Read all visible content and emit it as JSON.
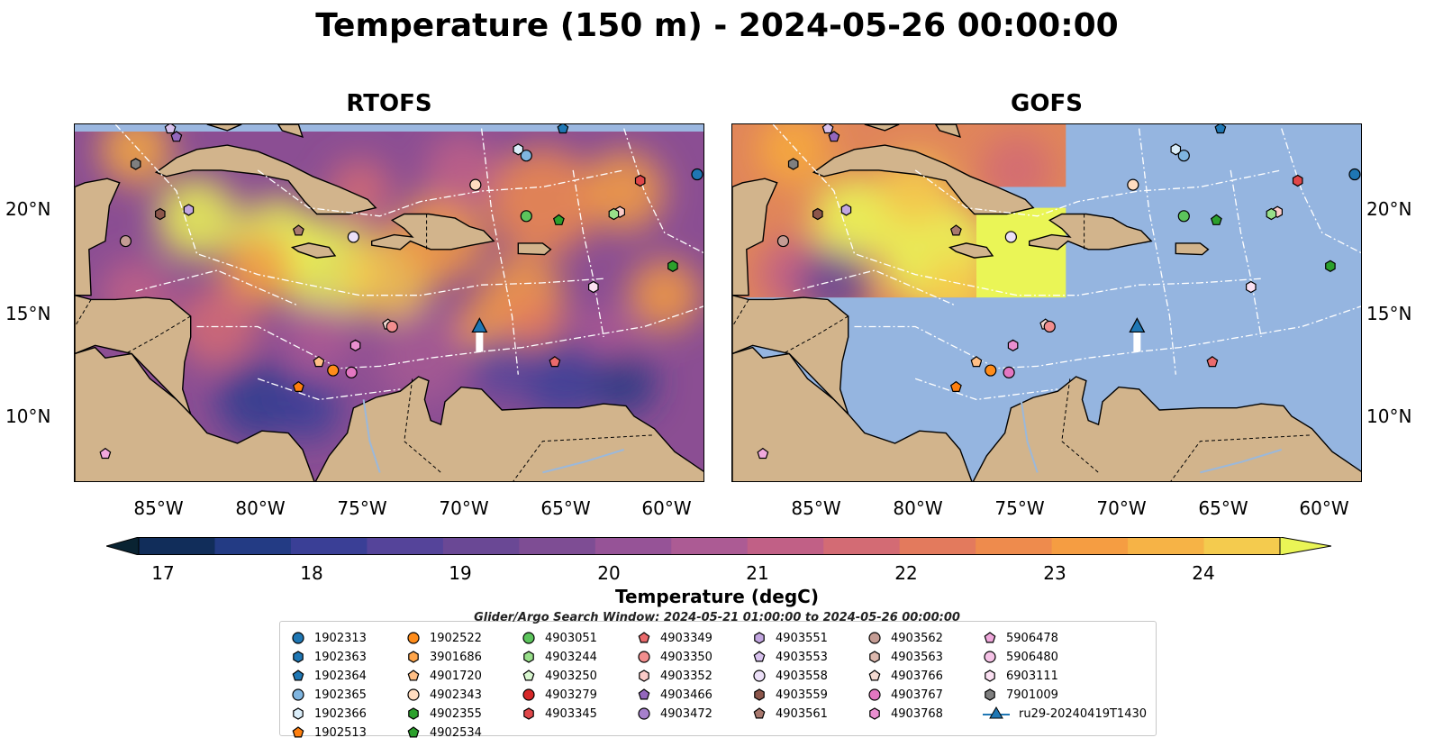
{
  "title": "Temperature (150 m) - 2024-05-26 00:00:00",
  "panels": [
    {
      "title": "RTOFS"
    },
    {
      "title": "GOFS"
    }
  ],
  "map_extent": {
    "lon": [
      -89,
      -58
    ],
    "lat": [
      7,
      24.2
    ]
  },
  "axes": {
    "lat_ticks": [
      "20°N",
      "15°N",
      "10°N"
    ],
    "lon_ticks": [
      "85°W",
      "80°W",
      "75°W",
      "70°W",
      "65°W",
      "60°W"
    ]
  },
  "colorbar": {
    "label": "Temperature (degC)",
    "ticks": [
      "17",
      "18",
      "19",
      "20",
      "21",
      "22",
      "23",
      "24"
    ],
    "range": [
      16.5,
      24.5
    ],
    "colors": [
      "#092332",
      "#112d5a",
      "#233b84",
      "#3a3f96",
      "#55449a",
      "#6a4895",
      "#7e4d94",
      "#965397",
      "#ac5b94",
      "#c16086",
      "#d36b74",
      "#e37a5d",
      "#ee8b4d",
      "#f59d42",
      "#f6b346",
      "#f4cb4e",
      "#eaf556"
    ]
  },
  "legend": {
    "window_text": "Glider/Argo Search Window: 2024-05-21 01:00:00 to 2024-05-26 00:00:00",
    "items": [
      {
        "label": "1902313",
        "marker": "circle",
        "color": "#1f77b4"
      },
      {
        "label": "1902363",
        "marker": "hexagon",
        "color": "#1f77b4"
      },
      {
        "label": "1902364",
        "marker": "pentagon",
        "color": "#1f77b4"
      },
      {
        "label": "1902365",
        "marker": "circle",
        "color": "#7fb5e0"
      },
      {
        "label": "1902366",
        "marker": "hexagon",
        "color": "#dbeefa"
      },
      {
        "label": "1902513",
        "marker": "pentagon",
        "color": "#ff7f0e"
      },
      {
        "label": "1902522",
        "marker": "circle",
        "color": "#ff8c1a"
      },
      {
        "label": "3901686",
        "marker": "hexagon",
        "color": "#ffa54a"
      },
      {
        "label": "4901720",
        "marker": "pentagon",
        "color": "#ffbf86"
      },
      {
        "label": "4902343",
        "marker": "circle",
        "color": "#ffdcc0"
      },
      {
        "label": "4902355",
        "marker": "hexagon",
        "color": "#2ca02c"
      },
      {
        "label": "4902534",
        "marker": "pentagon",
        "color": "#2ca02c"
      },
      {
        "label": "4903051",
        "marker": "circle",
        "color": "#5cc45c"
      },
      {
        "label": "4903244",
        "marker": "hexagon",
        "color": "#98df8a"
      },
      {
        "label": "4903250",
        "marker": "pentagon",
        "color": "#d9f7d0"
      },
      {
        "label": "4903279",
        "marker": "circle",
        "color": "#d62728"
      },
      {
        "label": "4903345",
        "marker": "hexagon",
        "color": "#e0474a"
      },
      {
        "label": "4903349",
        "marker": "pentagon",
        "color": "#ea6a6c"
      },
      {
        "label": "4903350",
        "marker": "circle",
        "color": "#f28e8e"
      },
      {
        "label": "4903352",
        "marker": "hexagon",
        "color": "#fbcbc8"
      },
      {
        "label": "4903466",
        "marker": "pentagon",
        "color": "#9467bd"
      },
      {
        "label": "4903472",
        "marker": "circle",
        "color": "#a680cc"
      },
      {
        "label": "4903551",
        "marker": "hexagon",
        "color": "#c2a6e0"
      },
      {
        "label": "4903553",
        "marker": "pentagon",
        "color": "#d8c2ee"
      },
      {
        "label": "4903558",
        "marker": "circle",
        "color": "#ece0f8"
      },
      {
        "label": "4903559",
        "marker": "hexagon",
        "color": "#8c564b"
      },
      {
        "label": "4903561",
        "marker": "pentagon",
        "color": "#a8786e"
      },
      {
        "label": "4903562",
        "marker": "circle",
        "color": "#c49c94"
      },
      {
        "label": "4903563",
        "marker": "hexagon",
        "color": "#dcb8ae"
      },
      {
        "label": "4903766",
        "marker": "pentagon",
        "color": "#f3dad2"
      },
      {
        "label": "4903767",
        "marker": "circle",
        "color": "#e377c2"
      },
      {
        "label": "4903768",
        "marker": "hexagon",
        "color": "#e98fd0"
      },
      {
        "label": "5906478",
        "marker": "pentagon",
        "color": "#f0a8dc"
      },
      {
        "label": "5906480",
        "marker": "circle",
        "color": "#f5c2e6"
      },
      {
        "label": "6903111",
        "marker": "hexagon",
        "color": "#fbe0f2"
      },
      {
        "label": "7901009",
        "marker": "hexagon",
        "color": "#7f7f7f"
      },
      {
        "label": "ru29-20240419T1430",
        "marker": "triangle",
        "color": "#1f77b4"
      }
    ]
  },
  "floats": [
    {
      "id": "1902313",
      "lon": -58.4,
      "lat": 21.8
    },
    {
      "id": "1902364",
      "lon": -65.0,
      "lat": 24.0
    },
    {
      "id": "1902366",
      "lon": -67.2,
      "lat": 23.0
    },
    {
      "id": "1902365",
      "lon": -66.8,
      "lat": 22.7
    },
    {
      "id": "4902343",
      "lon": -69.3,
      "lat": 21.3
    },
    {
      "id": "4903345",
      "lon": -61.2,
      "lat": 21.5
    },
    {
      "id": "4903352",
      "lon": -62.2,
      "lat": 20.0
    },
    {
      "id": "4903244",
      "lon": -62.5,
      "lat": 19.9
    },
    {
      "id": "4903051",
      "lon": -66.8,
      "lat": 19.8
    },
    {
      "id": "4902534",
      "lon": -65.2,
      "lat": 19.6
    },
    {
      "id": "4902355",
      "lon": -59.6,
      "lat": 17.4
    },
    {
      "id": "6903111",
      "lon": -63.5,
      "lat": 16.4
    },
    {
      "id": "4903558",
      "lon": -75.3,
      "lat": 18.8
    },
    {
      "id": "4903559",
      "lon": -84.8,
      "lat": 19.9
    },
    {
      "id": "7901009",
      "lon": -86.0,
      "lat": 22.3
    },
    {
      "id": "4903551",
      "lon": -83.4,
      "lat": 20.1
    },
    {
      "id": "4903561",
      "lon": -78.0,
      "lat": 19.1
    },
    {
      "id": "4903562",
      "lon": -86.5,
      "lat": 18.6
    },
    {
      "id": "4903466",
      "lon": -84.0,
      "lat": 23.6
    },
    {
      "id": "4903553",
      "lon": -84.3,
      "lat": 24.0
    },
    {
      "id": "4903766",
      "lon": -73.6,
      "lat": 14.6
    },
    {
      "id": "4903350",
      "lon": -73.4,
      "lat": 14.5
    },
    {
      "id": "4903768",
      "lon": -75.2,
      "lat": 13.6
    },
    {
      "id": "4903767",
      "lon": -75.4,
      "lat": 12.3
    },
    {
      "id": "1902522",
      "lon": -76.3,
      "lat": 12.4
    },
    {
      "id": "4901720",
      "lon": -77.0,
      "lat": 12.8
    },
    {
      "id": "1902513",
      "lon": -78.0,
      "lat": 11.6
    },
    {
      "id": "4903349",
      "lon": -65.4,
      "lat": 12.8
    },
    {
      "id": "5906478",
      "lon": -87.5,
      "lat": 8.4
    }
  ],
  "glider": {
    "id": "ru29-20240419T1430",
    "lon": -69.1,
    "lat": 14.5
  }
}
